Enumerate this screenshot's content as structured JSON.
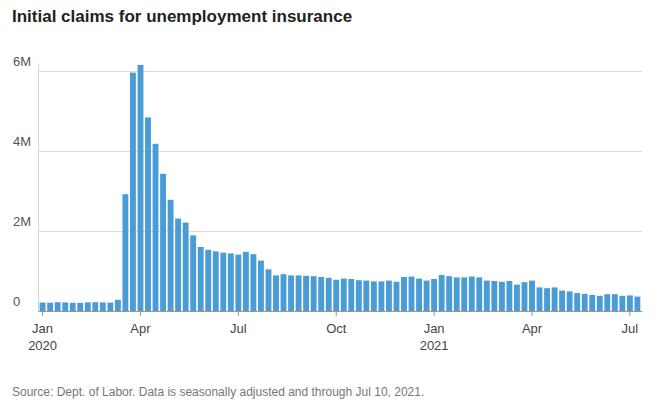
{
  "chart_data": {
    "type": "bar",
    "title": "Initial claims for unemployment insurance",
    "source": "Source: Dept. of Labor. Data is seasonally adjusted and through Jul 10, 2021.",
    "categories": [
      "Jan\n2020",
      null,
      null,
      null,
      null,
      null,
      null,
      null,
      null,
      null,
      null,
      null,
      null,
      "Apr",
      null,
      null,
      null,
      null,
      null,
      null,
      null,
      null,
      null,
      null,
      null,
      null,
      "Jul",
      null,
      null,
      null,
      null,
      null,
      null,
      null,
      null,
      null,
      null,
      null,
      null,
      "Oct",
      null,
      null,
      null,
      null,
      null,
      null,
      null,
      null,
      null,
      null,
      null,
      null,
      "Jan\n2021",
      null,
      null,
      null,
      null,
      null,
      null,
      null,
      null,
      null,
      null,
      null,
      null,
      "Apr",
      null,
      null,
      null,
      null,
      null,
      null,
      null,
      null,
      null,
      null,
      null,
      null,
      "Jul",
      null
    ],
    "values": [
      212000,
      207000,
      220000,
      215000,
      205000,
      205000,
      215000,
      220000,
      215000,
      210000,
      280000,
      2920000,
      5960000,
      6150000,
      4840000,
      4180000,
      3430000,
      2780000,
      2310000,
      2210000,
      1890000,
      1600000,
      1530000,
      1490000,
      1460000,
      1440000,
      1410000,
      1480000,
      1420000,
      1260000,
      1040000,
      890000,
      920000,
      890000,
      890000,
      880000,
      870000,
      850000,
      830000,
      780000,
      810000,
      800000,
      770000,
      760000,
      740000,
      740000,
      760000,
      730000,
      850000,
      860000,
      810000,
      760000,
      800000,
      900000,
      870000,
      840000,
      840000,
      860000,
      840000,
      760000,
      750000,
      730000,
      750000,
      660000,
      720000,
      760000,
      590000,
      570000,
      590000,
      510000,
      490000,
      450000,
      430000,
      400000,
      380000,
      420000,
      420000,
      380000,
      390000,
      360000
    ],
    "color": "#4a9cd6",
    "ylim": [
      0,
      6200000
    ],
    "yticks": [
      0,
      {
        "value": 2000000,
        "label": "2M"
      },
      {
        "value": 4000000,
        "label": "4M"
      },
      {
        "value": 6000000,
        "label": "6M"
      }
    ],
    "grid": true
  }
}
